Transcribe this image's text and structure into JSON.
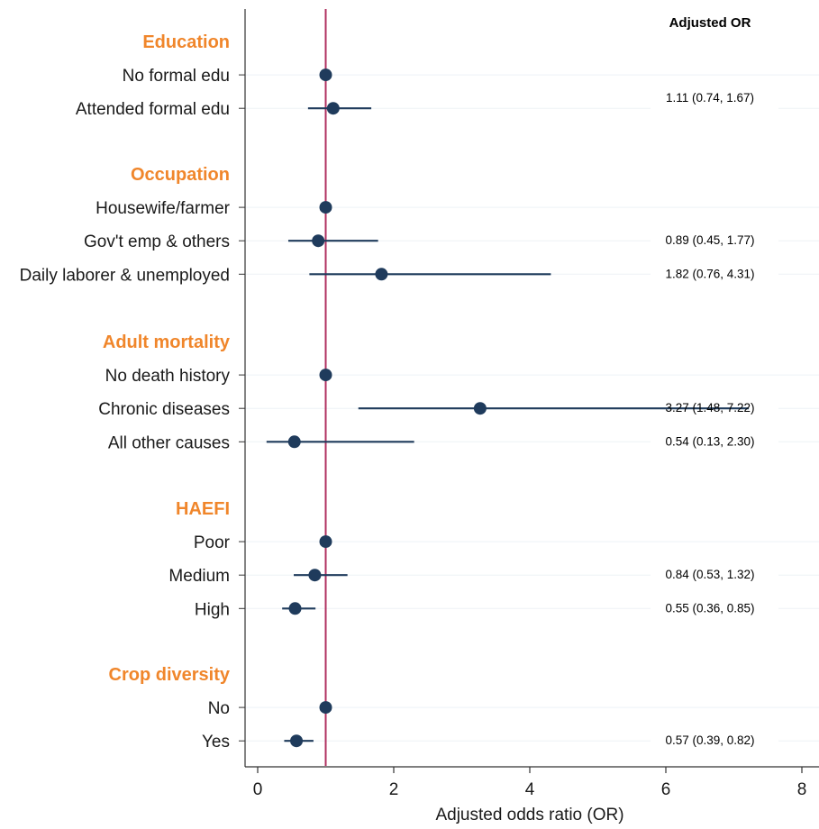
{
  "chart_data": {
    "type": "forest",
    "xlabel": "Adjusted odds ratio (OR)",
    "xlim": [
      0,
      8
    ],
    "xticks": [
      0,
      2,
      4,
      6,
      8
    ],
    "reference_line": 1,
    "annotation_header": "Adjusted OR",
    "colors": {
      "point": "#1f3b5c",
      "ci": "#1f3b5c",
      "reference": "#b03060",
      "group_label": "#f0862b",
      "background": "#eaf0f5"
    },
    "groups": [
      {
        "name": "Education",
        "rows": [
          {
            "label": "No formal edu",
            "or": 1.0,
            "ci": null,
            "text": ""
          },
          {
            "label": "Attended formal edu",
            "or": 1.11,
            "ci": [
              0.74,
              1.67
            ],
            "text": "1.11 (0.74, 1.67)"
          }
        ]
      },
      {
        "name": "Occupation",
        "rows": [
          {
            "label": "Housewife/farmer",
            "or": 1.0,
            "ci": null,
            "text": ""
          },
          {
            "label": "Gov't emp & others",
            "or": 0.89,
            "ci": [
              0.45,
              1.77
            ],
            "text": "0.89 (0.45, 1.77)"
          },
          {
            "label": "Daily laborer & unemployed",
            "or": 1.82,
            "ci": [
              0.76,
              4.31
            ],
            "text": "1.82 (0.76, 4.31)"
          }
        ]
      },
      {
        "name": "Adult mortality",
        "rows": [
          {
            "label": "No death history",
            "or": 1.0,
            "ci": null,
            "text": ""
          },
          {
            "label": "Chronic diseases",
            "or": 3.27,
            "ci": [
              1.48,
              7.22
            ],
            "text": "3.27 (1.48, 7.22)"
          },
          {
            "label": "All other causes",
            "or": 0.54,
            "ci": [
              0.13,
              2.3
            ],
            "text": "0.54 (0.13, 2.30)"
          }
        ]
      },
      {
        "name": "HAEFI",
        "rows": [
          {
            "label": "Poor",
            "or": 1.0,
            "ci": null,
            "text": ""
          },
          {
            "label": "Medium",
            "or": 0.84,
            "ci": [
              0.53,
              1.32
            ],
            "text": "0.84 (0.53, 1.32)"
          },
          {
            "label": "High",
            "or": 0.55,
            "ci": [
              0.36,
              0.85
            ],
            "text": "0.55 (0.36, 0.85)"
          }
        ]
      },
      {
        "name": "Crop diversity",
        "rows": [
          {
            "label": "No",
            "or": 1.0,
            "ci": null,
            "text": ""
          },
          {
            "label": "Yes",
            "or": 0.57,
            "ci": [
              0.39,
              0.82
            ],
            "text": "0.57 (0.39, 0.82)"
          }
        ]
      }
    ]
  }
}
